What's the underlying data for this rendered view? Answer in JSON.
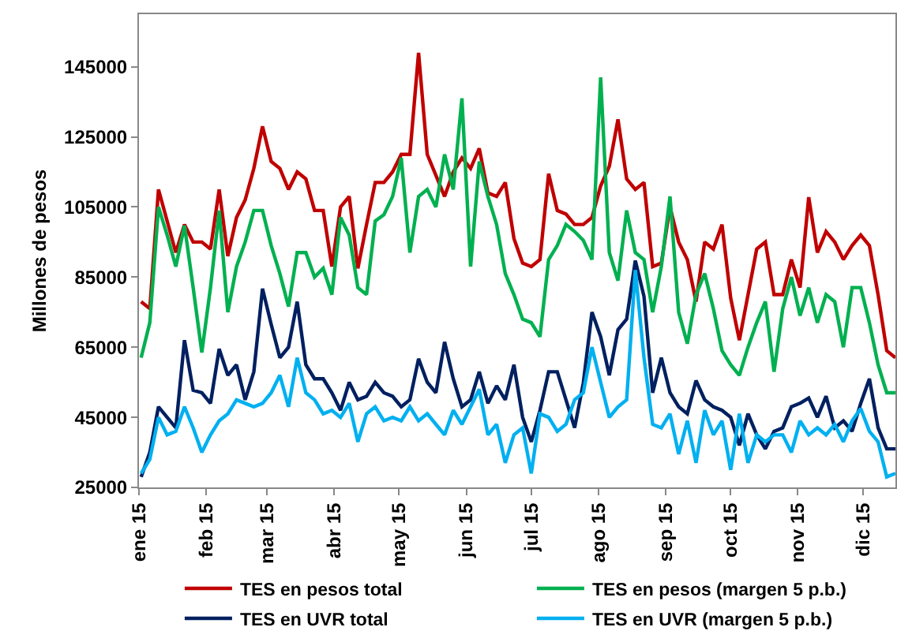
{
  "chart_data": {
    "type": "line",
    "ylabel": "Millones de pesos",
    "legend": "bottom",
    "line_style": "solid",
    "xlim": [
      "2015-01-01",
      "2015-12-16"
    ],
    "ylim": [
      25000,
      160000
    ],
    "yticks": [
      25000,
      45000,
      65000,
      85000,
      105000,
      125000,
      145000
    ],
    "xticks": [
      {
        "value": "2015-01-01",
        "label": "ene 15"
      },
      {
        "value": "2015-02-01",
        "label": "feb 15"
      },
      {
        "value": "2015-03-01",
        "label": "mar 15"
      },
      {
        "value": "2015-04-01",
        "label": "abr 15"
      },
      {
        "value": "2015-05-01",
        "label": "may 15"
      },
      {
        "value": "2015-06-01",
        "label": "jun 15"
      },
      {
        "value": "2015-07-01",
        "label": "jul 15"
      },
      {
        "value": "2015-08-01",
        "label": "ago 15"
      },
      {
        "value": "2015-09-01",
        "label": "sep 15"
      },
      {
        "value": "2015-10-01",
        "label": "oct 15"
      },
      {
        "value": "2015-11-01",
        "label": "nov 15"
      },
      {
        "value": "2015-12-01",
        "label": "dic 15"
      }
    ],
    "x": [
      "2015-01-02",
      "2015-01-06",
      "2015-01-10",
      "2015-01-14",
      "2015-01-18",
      "2015-01-22",
      "2015-01-26",
      "2015-01-30",
      "2015-02-03",
      "2015-02-07",
      "2015-02-11",
      "2015-02-15",
      "2015-02-19",
      "2015-02-23",
      "2015-02-27",
      "2015-03-03",
      "2015-03-07",
      "2015-03-11",
      "2015-03-15",
      "2015-03-19",
      "2015-03-23",
      "2015-03-27",
      "2015-03-31",
      "2015-04-04",
      "2015-04-08",
      "2015-04-12",
      "2015-04-16",
      "2015-04-20",
      "2015-04-24",
      "2015-04-28",
      "2015-05-02",
      "2015-05-06",
      "2015-05-10",
      "2015-05-14",
      "2015-05-18",
      "2015-05-22",
      "2015-05-26",
      "2015-05-30",
      "2015-06-03",
      "2015-06-07",
      "2015-06-11",
      "2015-06-15",
      "2015-06-19",
      "2015-06-23",
      "2015-06-27",
      "2015-07-01",
      "2015-07-05",
      "2015-07-09",
      "2015-07-13",
      "2015-07-17",
      "2015-07-21",
      "2015-07-25",
      "2015-07-29",
      "2015-08-02",
      "2015-08-06",
      "2015-08-10",
      "2015-08-14",
      "2015-08-18",
      "2015-08-22",
      "2015-08-26",
      "2015-08-30",
      "2015-09-03",
      "2015-09-07",
      "2015-09-11",
      "2015-09-15",
      "2015-09-19",
      "2015-09-23",
      "2015-09-27",
      "2015-10-01",
      "2015-10-05",
      "2015-10-09",
      "2015-10-13",
      "2015-10-17",
      "2015-10-21",
      "2015-10-25",
      "2015-10-29",
      "2015-11-02",
      "2015-11-06",
      "2015-11-10",
      "2015-11-14",
      "2015-11-18",
      "2015-11-22",
      "2015-11-26",
      "2015-11-30",
      "2015-12-04",
      "2015-12-08",
      "2015-12-12",
      "2015-12-16"
    ],
    "series": [
      {
        "name": "TES en pesos total",
        "color": "#c00000",
        "values": [
          78000,
          76000,
          110000,
          101000,
          92000,
          100000,
          95000,
          95000,
          93000,
          110000,
          91000,
          102000,
          107000,
          116000,
          128000,
          118000,
          116000,
          110000,
          115000,
          113000,
          104000,
          104000,
          88000,
          105000,
          108000,
          87500,
          100000,
          112000,
          112000,
          115000,
          120000,
          120000,
          149000,
          120000,
          114000,
          108000,
          115000,
          119000,
          116000,
          121700,
          109000,
          108000,
          112000,
          96000,
          89000,
          88000,
          90000,
          114500,
          104000,
          103000,
          100000,
          100000,
          102000,
          111000,
          116600,
          130000,
          113000,
          110000,
          112000,
          88000,
          89000,
          105000,
          95000,
          90000,
          78000,
          95000,
          93000,
          100000,
          79000,
          67000,
          80000,
          93000,
          95000,
          80000,
          80000,
          90000,
          82000,
          107800,
          92000,
          98000,
          95000,
          90000,
          94000,
          97000,
          94000,
          80000,
          64000,
          62000
        ]
      },
      {
        "name": "TES en pesos (margen 5 p.b.)",
        "color": "#00b050",
        "values": [
          62000,
          72000,
          105000,
          97000,
          88000,
          99700,
          82000,
          63500,
          82000,
          104000,
          75000,
          88000,
          95000,
          104000,
          104000,
          94000,
          86000,
          76600,
          92000,
          92000,
          85000,
          87500,
          80000,
          102000,
          97000,
          82000,
          80000,
          101000,
          102800,
          108000,
          119000,
          92000,
          108000,
          110000,
          105000,
          120000,
          110000,
          136000,
          88000,
          118000,
          108000,
          100000,
          86000,
          80000,
          73000,
          72000,
          68000,
          90000,
          94000,
          100000,
          98000,
          95500,
          90000,
          142000,
          92000,
          84000,
          104000,
          92000,
          90000,
          75000,
          88000,
          108000,
          75000,
          66000,
          80000,
          86000,
          76000,
          64000,
          60000,
          57000,
          65000,
          72000,
          78000,
          58000,
          76000,
          85000,
          74000,
          82000,
          72000,
          80000,
          78000,
          65000,
          82000,
          82000,
          72000,
          60000,
          52000,
          52000
        ]
      },
      {
        "name": "TES en UVR total",
        "color": "#002060",
        "values": [
          28000,
          35000,
          48000,
          45000,
          42000,
          67000,
          52700,
          52000,
          49000,
          64500,
          57000,
          60000,
          50000,
          58000,
          81700,
          71500,
          62000,
          65000,
          78000,
          60000,
          56000,
          56000,
          52000,
          47000,
          55000,
          50000,
          51000,
          55000,
          52000,
          51000,
          48000,
          50000,
          61700,
          55000,
          52000,
          66500,
          56000,
          48000,
          50000,
          58000,
          49000,
          54000,
          50000,
          60000,
          45000,
          38000,
          47000,
          58000,
          58000,
          50000,
          42000,
          54800,
          75000,
          68000,
          57000,
          70000,
          73000,
          89700,
          79500,
          52000,
          62000,
          52000,
          48000,
          46000,
          55500,
          50000,
          48000,
          47000,
          45000,
          37000,
          46000,
          40000,
          36000,
          41000,
          42000,
          48000,
          49000,
          50500,
          45000,
          51000,
          42000,
          44000,
          41000,
          49000,
          56000,
          42000,
          36000,
          36000
        ]
      },
      {
        "name": "TES en UVR (margen 5 p.b.)",
        "color": "#00b0f0",
        "values": [
          29000,
          33000,
          45000,
          40000,
          41000,
          48000,
          42000,
          35000,
          40000,
          44000,
          46000,
          50000,
          49000,
          48000,
          49000,
          52000,
          57000,
          48000,
          62000,
          52000,
          50000,
          46000,
          47000,
          45000,
          49000,
          38000,
          46000,
          48000,
          44000,
          45000,
          44000,
          48000,
          44000,
          46000,
          43000,
          40000,
          47000,
          43000,
          48000,
          53000,
          40000,
          43000,
          32000,
          40000,
          42000,
          29000,
          46000,
          45000,
          41000,
          43000,
          50000,
          52000,
          65000,
          55000,
          45000,
          48000,
          50000,
          87000,
          62000,
          43000,
          42000,
          46000,
          34500,
          44000,
          32000,
          47000,
          40000,
          44000,
          30000,
          46000,
          32000,
          40000,
          38000,
          40000,
          40000,
          35000,
          44000,
          40000,
          42000,
          40000,
          43000,
          38000,
          44000,
          47500,
          41000,
          38000,
          28000,
          29000
        ]
      }
    ]
  }
}
